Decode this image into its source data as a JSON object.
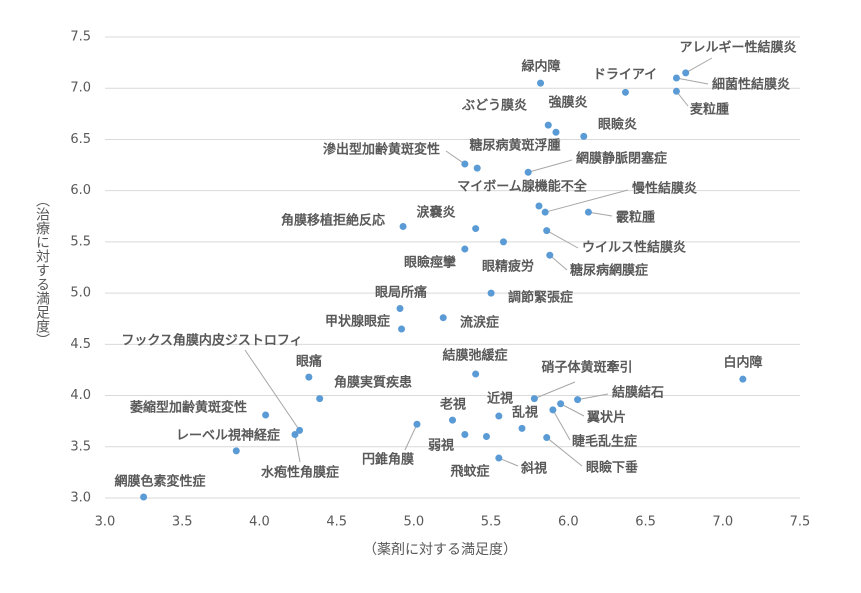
{
  "chart_data": {
    "type": "scatter",
    "xlabel": "（薬剤に対する満足度）",
    "ylabel": "（治療に対する満足度）",
    "color": "#5b9bd5",
    "grid": true,
    "xlim": [
      3.0,
      7.5
    ],
    "ylim": [
      3.0,
      7.5
    ],
    "xticks": [
      {
        "value": 3,
        "label": "3.0"
      },
      {
        "value": 3.5,
        "label": "3.5"
      },
      {
        "value": 4,
        "label": "4.0"
      },
      {
        "value": 4.5,
        "label": "4.5"
      },
      {
        "value": 5,
        "label": "5.0"
      },
      {
        "value": 5.5,
        "label": "5.5"
      },
      {
        "value": 6,
        "label": "6.0"
      },
      {
        "value": 6.5,
        "label": "6.5"
      },
      {
        "value": 7,
        "label": "7.0"
      },
      {
        "value": 7.5,
        "label": "7.5"
      }
    ],
    "yticks": [
      {
        "value": 3,
        "label": "3.0"
      },
      {
        "value": 3.5,
        "label": "3.5"
      },
      {
        "value": 4,
        "label": "4.0"
      },
      {
        "value": 4.5,
        "label": "4.5"
      },
      {
        "value": 5,
        "label": "5.0"
      },
      {
        "value": 5.5,
        "label": "5.5"
      },
      {
        "value": 6,
        "label": "6.0"
      },
      {
        "value": 6.5,
        "label": "6.5"
      },
      {
        "value": 7,
        "label": "7.0"
      },
      {
        "value": 7.5,
        "label": "7.5"
      }
    ],
    "labels": [
      "アレルギー性結膜炎",
      "細菌性結膜炎",
      "麦粒腫",
      "ドライアイ",
      "緑内障",
      "ぶどう膜炎",
      "強膜炎",
      "眼瞼炎",
      "滲出型加齢黄斑変性",
      "糖尿病黄斑浮腫",
      "網膜静脈閉塞症",
      "マイボーム腺機能不全",
      "慢性結膜炎",
      "霰粒腫",
      "涙嚢炎",
      "角膜移植拒絶反応",
      "眼精疲労",
      "ウイルス性結膜炎",
      "眼瞼痙攣",
      "糖尿病網膜症",
      "調節緊張症",
      "眼局所痛",
      "流涙症",
      "甲状腺眼症",
      "フックス角膜内皮ジストロフィ",
      "眼痛",
      "角膜実質疾患",
      "結膜弛緩症",
      "硝子体黄斑牽引",
      "白内障",
      "結膜結石",
      "萎縮型加齢黄斑変性",
      "老視",
      "近視",
      "乱視",
      "翼状片",
      "睫毛乱生症",
      "眼瞼下垂",
      "円錐角膜",
      "弱視",
      "飛蚊症",
      "斜視",
      "レーベル視神経症",
      "水疱性角膜症",
      "網膜色素変性症"
    ],
    "x": [
      6.76,
      6.7,
      6.7,
      6.37,
      5.82,
      5.87,
      5.92,
      6.1,
      5.33,
      5.41,
      5.74,
      5.81,
      5.85,
      6.13,
      5.4,
      4.93,
      5.58,
      5.86,
      5.33,
      5.88,
      5.5,
      4.91,
      5.19,
      4.92,
      4.26,
      4.32,
      4.39,
      5.4,
      5.78,
      7.13,
      6.06,
      4.04,
      5.25,
      5.55,
      5.7,
      5.95,
      5.9,
      5.86,
      5.02,
      5.33,
      5.47,
      5.55,
      3.85,
      4.23,
      3.25
    ],
    "values": [
      7.15,
      7.1,
      6.97,
      6.96,
      7.05,
      6.64,
      6.57,
      6.53,
      6.26,
      6.22,
      6.18,
      5.85,
      5.79,
      5.79,
      5.63,
      5.65,
      5.5,
      5.61,
      5.43,
      5.37,
      5.0,
      4.85,
      4.76,
      4.65,
      3.66,
      4.18,
      3.97,
      4.21,
      3.97,
      4.16,
      3.96,
      3.81,
      3.76,
      3.8,
      3.68,
      3.92,
      3.86,
      3.59,
      3.72,
      3.62,
      3.6,
      3.39,
      3.46,
      3.62,
      3.01
    ]
  }
}
